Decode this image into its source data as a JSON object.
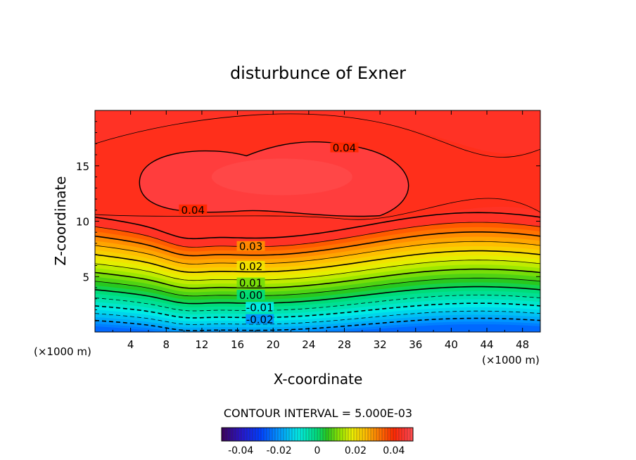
{
  "chart_data": {
    "type": "heatmap",
    "subtype": "filled-contour",
    "title": "disturbunce of Exner",
    "xlabel": "X-coordinate",
    "ylabel": "Z-coordinate",
    "x_unit_left": "(×1000 m)",
    "x_unit_right": "(×1000 m)",
    "xlim": [
      0,
      50
    ],
    "ylim": [
      0,
      20
    ],
    "x_ticks": [
      4,
      8,
      12,
      16,
      20,
      24,
      28,
      32,
      36,
      40,
      44,
      48
    ],
    "y_ticks": [
      5,
      10,
      15
    ],
    "contour_interval_text": "CONTOUR INTERVAL = 5.000E-03",
    "contour_labels": [
      {
        "text": "0.04",
        "x": 28,
        "y": 16.6
      },
      {
        "text": "0.04",
        "x": 11,
        "y": 11.0
      },
      {
        "text": "0.03",
        "x": 17.5,
        "y": 7.7
      },
      {
        "text": "0.02",
        "x": 17.5,
        "y": 5.9
      },
      {
        "text": "0.01",
        "x": 17.5,
        "y": 4.4
      },
      {
        "text": "0.00",
        "x": 17.5,
        "y": 3.3
      },
      {
        "text": "-0.01",
        "x": 18.5,
        "y": 2.2
      },
      {
        "text": "-0.02",
        "x": 18.5,
        "y": 1.1
      }
    ],
    "levels": [
      -0.02,
      -0.015,
      -0.01,
      -0.005,
      0.0,
      0.005,
      0.01,
      0.015,
      0.02,
      0.025,
      0.03,
      0.035,
      0.04
    ],
    "colorbar": {
      "min": -0.05,
      "max": 0.05,
      "tick_labels": [
        "-0.04",
        "-0.02",
        "0",
        "0.02",
        "0.04"
      ],
      "tick_values": [
        -0.04,
        -0.02,
        0,
        0.02,
        0.04
      ]
    }
  }
}
